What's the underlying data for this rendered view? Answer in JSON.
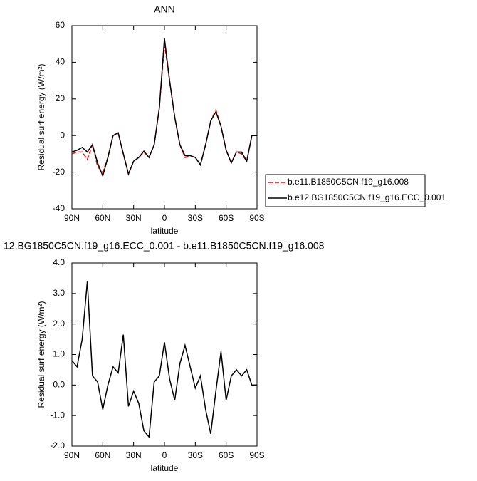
{
  "chart_data": [
    {
      "type": "line",
      "title": "ANN",
      "x_label": "latitude",
      "y_label": "Residual surf energy (W/m²)",
      "x": [
        90,
        85,
        80,
        75,
        70,
        65,
        60,
        55,
        50,
        45,
        40,
        35,
        30,
        25,
        20,
        15,
        10,
        5,
        0,
        -5,
        -10,
        -15,
        -20,
        -25,
        -30,
        -35,
        -40,
        -45,
        -50,
        -55,
        -60,
        -65,
        -70,
        -75,
        -80,
        -85,
        -90
      ],
      "series": [
        {
          "name": "b.e11.B1850C5CN.f19_g16.008",
          "color": "#ff0000",
          "line_style": "dashed",
          "values": [
            -10,
            -9,
            -9,
            -13,
            -5,
            -17,
            -20,
            -12,
            0,
            1.5,
            -10,
            -21,
            -14,
            -12,
            -9,
            -12,
            -5,
            15,
            50,
            30,
            10,
            -5,
            -12,
            -11,
            -12,
            -16,
            -5,
            8,
            14,
            5,
            -8,
            -15,
            -9,
            -10,
            -14,
            0,
            0
          ]
        },
        {
          "name": "b.e12.BG1850C5CN.f19_g16.ECC_0.001",
          "color": "#000000",
          "line_style": "solid",
          "values": [
            -9,
            -8,
            -6.5,
            -9,
            -5,
            -15,
            -22,
            -12,
            0,
            1.5,
            -10,
            -21,
            -14,
            -12,
            -8.5,
            -12,
            -5,
            15,
            53,
            30,
            10,
            -5,
            -11,
            -11,
            -12,
            -16,
            -5,
            8,
            13,
            5,
            -8,
            -15,
            -9,
            -9,
            -14,
            0,
            0
          ]
        }
      ],
      "xlim": [
        90,
        -90
      ],
      "xticks": [
        {
          "value": 90,
          "label": "90N"
        },
        {
          "value": 60,
          "label": "60N"
        },
        {
          "value": 30,
          "label": "30N"
        },
        0,
        {
          "value": -30,
          "label": "30S"
        },
        {
          "value": -60,
          "label": "60S"
        },
        {
          "value": -90,
          "label": "90S"
        }
      ],
      "ylim": [
        -40,
        60
      ],
      "yticks": [
        -40,
        -20,
        0,
        20,
        40,
        60
      ],
      "legend": "outside-right"
    },
    {
      "type": "line",
      "title": "12.BG1850C5CN.f19_g16.ECC_0.001 - b.e11.B1850C5CN.f19_g16.008",
      "x_label": "latitude",
      "y_label": "Residual surf energy (W/m²)",
      "x": [
        90,
        85,
        80,
        75,
        70,
        65,
        60,
        55,
        50,
        45,
        40,
        35,
        30,
        25,
        20,
        15,
        10,
        5,
        0,
        -5,
        -10,
        -15,
        -20,
        -25,
        -30,
        -35,
        -40,
        -45,
        -50,
        -55,
        -60,
        -65,
        -70,
        -75,
        -80,
        -85,
        -90
      ],
      "series": [
        {
          "color": "#000000",
          "line_style": "solid",
          "values": [
            0.8,
            0.6,
            1.5,
            3.4,
            0.3,
            0.1,
            -0.8,
            0.0,
            0.6,
            0.4,
            1.65,
            -0.7,
            -0.2,
            -0.6,
            -1.5,
            -1.7,
            0.1,
            0.3,
            1.4,
            0.2,
            -0.5,
            0.7,
            1.3,
            0.6,
            -0.1,
            0.3,
            -0.8,
            -1.6,
            -0.2,
            1.1,
            -0.5,
            0.3,
            0.5,
            0.3,
            0.5,
            0.0,
            0.0
          ]
        }
      ],
      "xlim": [
        90,
        -90
      ],
      "xticks": [
        {
          "value": 90,
          "label": "90N"
        },
        {
          "value": 60,
          "label": "60N"
        },
        {
          "value": 30,
          "label": "30N"
        },
        0,
        {
          "value": -30,
          "label": "30S"
        },
        {
          "value": -60,
          "label": "60S"
        },
        {
          "value": -90,
          "label": "90S"
        }
      ],
      "ylim": [
        -2,
        4
      ],
      "yticks": [
        {
          "value": -2,
          "label": "-2.0"
        },
        {
          "value": -1,
          "label": "-1.0"
        },
        {
          "value": 0,
          "label": "0.0"
        },
        {
          "value": 1,
          "label": "1.0"
        },
        {
          "value": 2,
          "label": "2.0"
        },
        {
          "value": 3,
          "label": "3.0"
        },
        {
          "value": 4,
          "label": "4.0"
        }
      ]
    }
  ]
}
